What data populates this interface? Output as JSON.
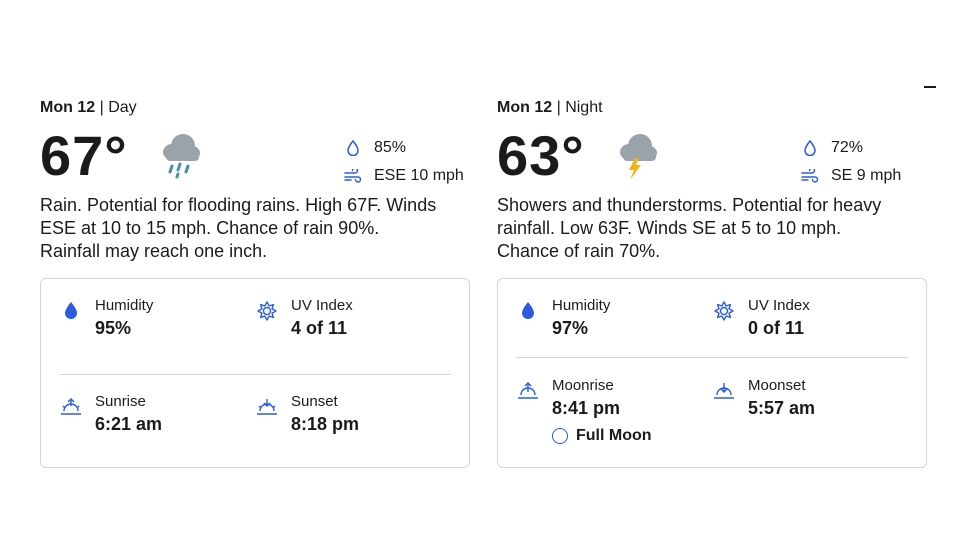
{
  "day": {
    "date": "Mon 12",
    "period": "Day",
    "temp": "67°",
    "icon": "rain-cloud-icon",
    "humidity_short": "85%",
    "wind": "ESE 10 mph",
    "narrative": "Rain. Potential for flooding rains. High 67F. Winds ESE at 10 to 15 mph. Chance of rain 90%. Rainfall may reach one inch.",
    "details": {
      "humidity_label": "Humidity",
      "humidity_value": "95%",
      "uv_label": "UV Index",
      "uv_value": "4 of 11",
      "sunrise_label": "Sunrise",
      "sunrise_value": "6:21 am",
      "sunset_label": "Sunset",
      "sunset_value": "8:18 pm"
    }
  },
  "night": {
    "date": "Mon 12",
    "period": "Night",
    "temp": "63°",
    "icon": "thunderstorm-cloud-icon",
    "humidity_short": "72%",
    "wind": "SE 9 mph",
    "narrative": "Showers and thunderstorms. Potential for heavy rainfall. Low 63F. Winds SE at 5 to 10 mph. Chance of rain 70%.",
    "details": {
      "humidity_label": "Humidity",
      "humidity_value": "97%",
      "uv_label": "UV Index",
      "uv_value": "0 of 11",
      "moonrise_label": "Moonrise",
      "moonrise_value": "8:41 pm",
      "moonset_label": "Moonset",
      "moonset_value": "5:57 am",
      "moon_phase": "Full Moon"
    }
  },
  "colors": {
    "accent": "#2b5ce0",
    "rain_drop": "#4a8fa8",
    "bolt": "#f2b416",
    "cloud": "#9aa3aa",
    "border": "#d6d6d6"
  }
}
